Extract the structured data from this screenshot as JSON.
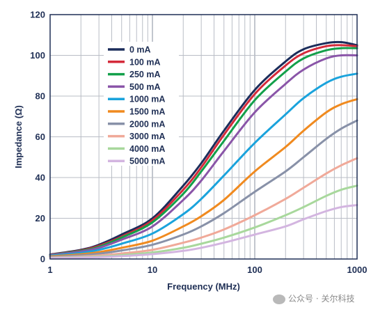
{
  "chart_data": {
    "type": "line",
    "xlabel": "Frequency (MHz)",
    "ylabel": "Impedance (Ω)",
    "xscale": "log",
    "xlim": [
      1,
      1000
    ],
    "ylim": [
      0,
      120
    ],
    "x_ticks": [
      "1",
      "10",
      "100",
      "1000"
    ],
    "y_ticks": [
      "0",
      "20",
      "40",
      "60",
      "80",
      "100",
      "120"
    ],
    "grid": true,
    "legend_position": "upper-left",
    "x": [
      1,
      2,
      3,
      5,
      10,
      20,
      30,
      50,
      100,
      200,
      300,
      500,
      700,
      1000
    ],
    "series": [
      {
        "name": "0 mA",
        "color": "#1b2d5b",
        "values": [
          2.2,
          4.5,
          7,
          12,
          20,
          36,
          47,
          63,
          83,
          97,
          103,
          106,
          106.5,
          105
        ]
      },
      {
        "name": "100 mA",
        "color": "#d42a3a",
        "values": [
          2.1,
          4.2,
          6.5,
          11,
          19,
          34,
          45,
          61,
          81,
          95,
          101,
          104.5,
          105,
          104.5
        ]
      },
      {
        "name": "250 mA",
        "color": "#13a04a",
        "values": [
          2.0,
          4.0,
          6,
          10.5,
          18,
          32,
          43,
          58,
          78,
          92,
          98.5,
          102.5,
          103.5,
          103.5
        ]
      },
      {
        "name": "500 mA",
        "color": "#8a55a8",
        "values": [
          1.9,
          3.7,
          5.5,
          9.5,
          16,
          29,
          38.5,
          53,
          72,
          86,
          93,
          98.5,
          100,
          100
        ]
      },
      {
        "name": "1000 mA",
        "color": "#1aa3dc",
        "values": [
          1.6,
          3.0,
          4.5,
          7.5,
          12.5,
          22,
          29.5,
          41,
          57,
          71,
          79,
          86.5,
          89.5,
          91
        ]
      },
      {
        "name": "1500 mA",
        "color": "#f08a1f",
        "values": [
          1.3,
          2.3,
          3.4,
          5.5,
          9,
          16,
          21,
          29,
          43,
          55,
          63,
          72,
          76,
          78.5
        ]
      },
      {
        "name": "2000 mA",
        "color": "#8891a8",
        "values": [
          1.0,
          1.8,
          2.6,
          4.2,
          7,
          12,
          16,
          22.5,
          33,
          43,
          50,
          59,
          64,
          68
        ]
      },
      {
        "name": "3000 mA",
        "color": "#f0a999",
        "values": [
          0.7,
          1.2,
          1.7,
          2.7,
          4.5,
          8,
          10.5,
          14.5,
          21.5,
          29.5,
          35,
          42,
          46,
          49.5
        ]
      },
      {
        "name": "4000 mA",
        "color": "#a8d89c",
        "values": [
          0.5,
          0.9,
          1.2,
          1.9,
          3.2,
          5.5,
          7.5,
          10.5,
          15.5,
          21.5,
          25.5,
          31,
          34,
          36
        ]
      },
      {
        "name": "5000 mA",
        "color": "#d3b5e0",
        "values": [
          0.4,
          0.7,
          0.9,
          1.4,
          2.4,
          4,
          5.5,
          8,
          12,
          16,
          19.5,
          23.5,
          25.5,
          26.5
        ]
      }
    ]
  },
  "watermark": {
    "icon": "wechat-icon",
    "text": "公众号 · 关尔科技"
  }
}
